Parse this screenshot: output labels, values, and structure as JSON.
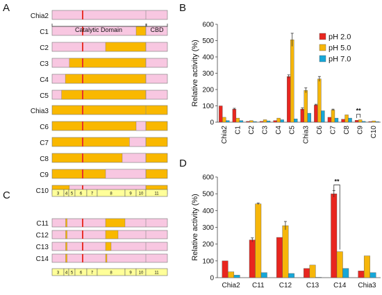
{
  "panel_labels": {
    "a": "A",
    "b": "B",
    "c": "C",
    "d": "D"
  },
  "colors": {
    "pink": "#f8c7e1",
    "gold": "#f9b800",
    "red_line": "#e8322b",
    "exon_fill": "#ffff99",
    "bar_red": "#e8261f",
    "bar_gold": "#f6b60a",
    "bar_blue": "#17a7d8"
  },
  "domains": {
    "catalytic": "Catalytic Domain",
    "cbd": "CBD"
  },
  "exons": [
    "3",
    "4",
    "5",
    "6",
    "7",
    "8",
    "9",
    "10",
    "11"
  ],
  "constructs_a": [
    {
      "name": "Chia2",
      "base": "pink",
      "segs": []
    },
    {
      "name": "C1",
      "base": "pink",
      "segs": [
        [
          10,
          11
        ]
      ]
    },
    {
      "name": "C2",
      "base": "pink",
      "segs": [
        [
          8.3,
          11
        ]
      ]
    },
    {
      "name": "C3",
      "base": "pink",
      "segs": [
        [
          5.1,
          11
        ]
      ]
    },
    {
      "name": "C4",
      "base": "pink",
      "segs": [
        [
          4.3,
          11
        ]
      ]
    },
    {
      "name": "C5",
      "base": "pink",
      "segs": [
        [
          3.8,
          11
        ]
      ]
    },
    {
      "name": "Chia3",
      "base": "gold",
      "segs": []
    },
    {
      "name": "C6",
      "base": "gold",
      "segs": [
        [
          10,
          11
        ]
      ]
    },
    {
      "name": "C7",
      "base": "gold",
      "segs": [
        [
          9.4,
          11
        ]
      ]
    },
    {
      "name": "C8",
      "base": "gold",
      "segs": [
        [
          8.9,
          11
        ]
      ]
    },
    {
      "name": "C9",
      "base": "gold",
      "segs": [
        [
          8.3,
          11
        ]
      ]
    },
    {
      "name": "C10",
      "base": "gold",
      "segs": [
        [
          5.1,
          11
        ]
      ]
    }
  ],
  "constructs_c": [
    {
      "name": "C11",
      "base": "pink",
      "segs": [
        [
          4.35,
          4.65
        ],
        [
          8.3,
          9.0
        ]
      ]
    },
    {
      "name": "C12",
      "base": "pink",
      "segs": [
        [
          4.35,
          4.65
        ],
        [
          8.3,
          8.75
        ]
      ]
    },
    {
      "name": "C13",
      "base": "pink",
      "segs": [
        [
          4.35,
          4.65
        ],
        [
          8.3,
          8.5
        ]
      ]
    },
    {
      "name": "C14",
      "base": "pink",
      "segs": [
        [
          4.35,
          4.65
        ],
        [
          8.3,
          8.35
        ]
      ]
    }
  ],
  "chart_data": [
    {
      "type": "bar",
      "panel": "B",
      "ylabel": "Relative activity (%)",
      "ylim": [
        0,
        600
      ],
      "yticks": [
        0,
        100,
        200,
        300,
        400,
        500,
        600
      ],
      "legend_position": "top-right",
      "categories": [
        "Chia2",
        "C1",
        "C2",
        "C3",
        "C4",
        "C5",
        "Chia3",
        "C6",
        "C7",
        "C8",
        "C9",
        "C10"
      ],
      "series": [
        {
          "name": "pH 2.0",
          "values": [
            100,
            80,
            5,
            5,
            10,
            280,
            80,
            105,
            30,
            18,
            12,
            4
          ],
          "errors": [
            0,
            5,
            0,
            0,
            0,
            10,
            8,
            5,
            0,
            0,
            0,
            0
          ]
        },
        {
          "name": "pH 5.0",
          "values": [
            30,
            25,
            10,
            15,
            25,
            505,
            195,
            265,
            75,
            45,
            15,
            8
          ],
          "errors": [
            0,
            0,
            0,
            0,
            0,
            40,
            15,
            15,
            5,
            0,
            0,
            0
          ]
        },
        {
          "name": "pH 7.0",
          "values": [
            10,
            10,
            4,
            8,
            15,
            20,
            55,
            70,
            25,
            25,
            5,
            3
          ],
          "errors": [
            0,
            0,
            0,
            0,
            0,
            0,
            0,
            0,
            0,
            0,
            0,
            0
          ]
        }
      ],
      "annotations": [
        {
          "text": "**",
          "between": [
            "C9",
            "C9"
          ]
        }
      ]
    },
    {
      "type": "bar",
      "panel": "D",
      "ylabel": "Relative activity (%)",
      "ylim": [
        0,
        600
      ],
      "yticks": [
        0,
        100,
        200,
        300,
        400,
        500,
        600
      ],
      "categories": [
        "Chia2",
        "C11",
        "C12",
        "C13",
        "C14",
        "Chia3"
      ],
      "series": [
        {
          "name": "pH 2.0",
          "values": [
            100,
            225,
            240,
            55,
            500,
            40
          ],
          "errors": [
            0,
            12,
            0,
            0,
            20,
            0
          ]
        },
        {
          "name": "pH 5.0",
          "values": [
            35,
            440,
            310,
            75,
            155,
            130
          ],
          "errors": [
            0,
            5,
            25,
            0,
            0,
            0
          ]
        },
        {
          "name": "pH 7.0",
          "values": [
            15,
            30,
            25,
            2,
            55,
            30
          ],
          "errors": [
            0,
            0,
            0,
            0,
            0,
            0
          ]
        }
      ],
      "annotations": [
        {
          "text": "**",
          "between": [
            "C14",
            "C14"
          ]
        }
      ]
    }
  ]
}
